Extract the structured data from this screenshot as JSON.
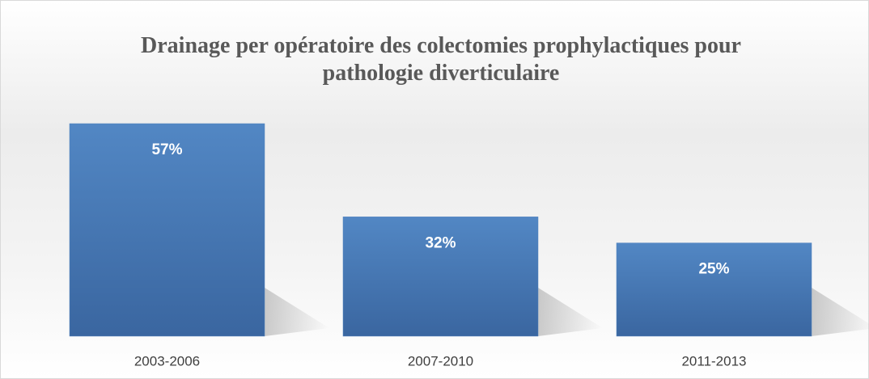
{
  "chart_data": {
    "type": "bar",
    "title": "Drainage per opératoire des colectomies prophylactiques pour pathologie diverticulaire",
    "categories": [
      "2003-2006",
      "2007-2010",
      "2011-2013"
    ],
    "values": [
      57,
      32,
      25
    ],
    "value_labels": [
      "57%",
      "32%",
      "25%"
    ],
    "color": "#4f81bd"
  }
}
